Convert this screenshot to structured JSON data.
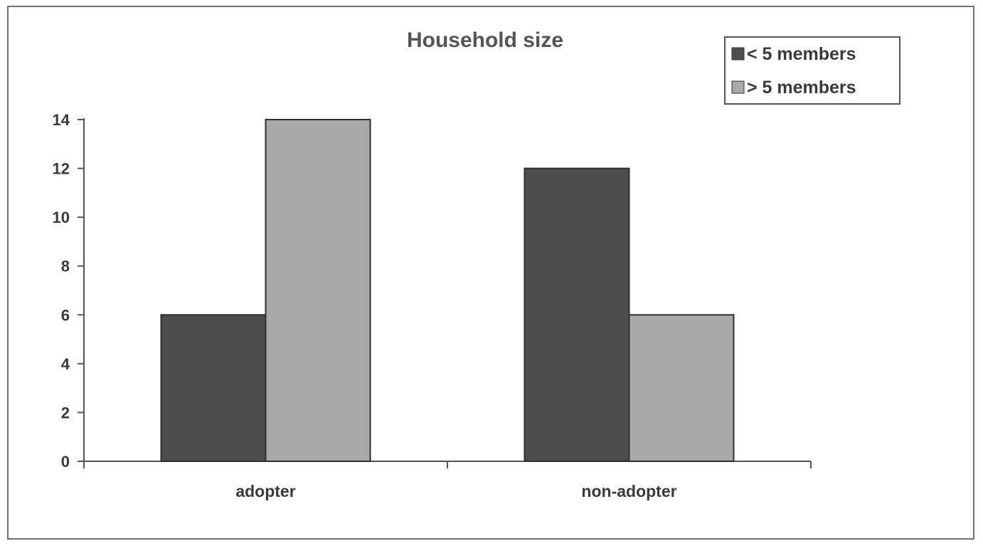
{
  "chart_data": {
    "type": "bar",
    "title": "Household size",
    "xlabel": "",
    "ylabel": "",
    "categories": [
      "adopter",
      "non-adopter"
    ],
    "series": [
      {
        "name": "< 5 members",
        "values": [
          6,
          12
        ],
        "color": "#4d4d4d"
      },
      {
        "name": "> 5 members",
        "values": [
          14,
          6
        ],
        "color": "#a9a9a9"
      }
    ],
    "ylim": [
      0,
      14
    ],
    "yticks": [
      0,
      2,
      4,
      6,
      8,
      10,
      12,
      14
    ],
    "grid": false,
    "legend_position": "top-right"
  }
}
